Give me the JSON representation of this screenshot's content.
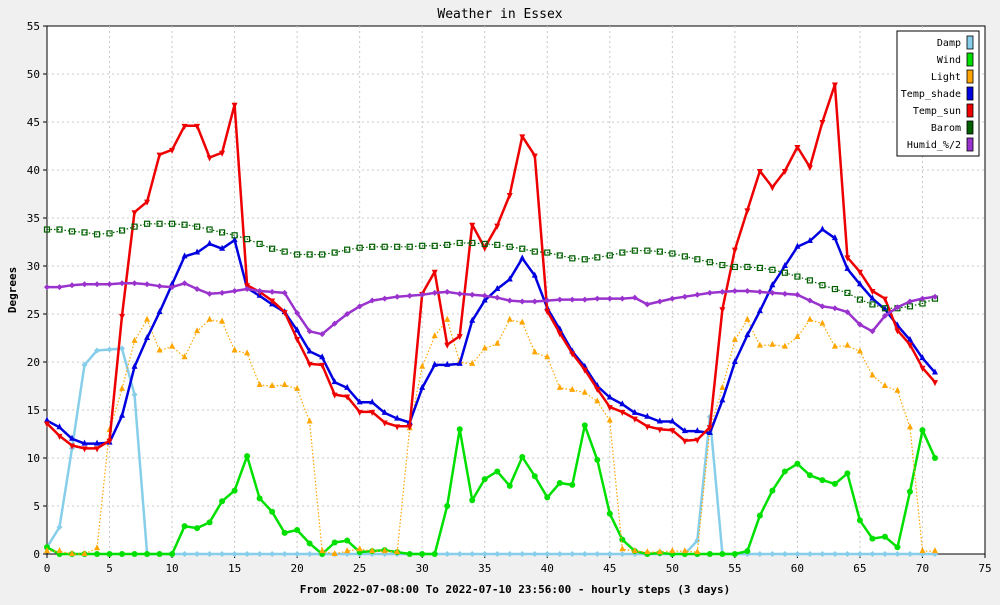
{
  "chart_data": {
    "type": "line",
    "title": "Weather in Essex",
    "xlabel": "From 2022-07-08:00 To 2022-07-10 23:56:00 - hourly steps (3 days)",
    "ylabel": "Degrees",
    "xlim": [
      0,
      75
    ],
    "ylim": [
      0,
      55
    ],
    "xticks": [
      0,
      5,
      10,
      15,
      20,
      25,
      30,
      35,
      40,
      45,
      50,
      55,
      60,
      65,
      70,
      75
    ],
    "yticks": [
      0,
      5,
      10,
      15,
      20,
      25,
      30,
      35,
      40,
      45,
      50,
      55
    ],
    "grid": true,
    "legend_position": "top-right",
    "series": [
      {
        "name": "Damp",
        "color": "#87ceeb",
        "marker": "diamond",
        "style": "solid",
        "values": [
          0.7,
          2.8,
          11,
          19.7,
          21.2,
          21.3,
          21.4,
          16.6,
          0,
          0,
          0,
          0,
          0,
          0,
          0,
          0,
          0,
          0,
          0,
          0,
          0,
          0,
          0,
          0,
          0,
          0,
          0,
          0,
          0,
          0,
          0,
          0,
          0,
          0,
          0,
          0,
          0,
          0,
          0,
          0,
          0,
          0,
          0,
          0,
          0,
          0,
          0,
          0,
          0,
          0,
          0,
          0,
          1.4,
          14.3,
          0,
          0,
          0,
          0,
          0,
          0,
          0,
          0,
          0,
          0,
          0,
          0,
          0,
          0,
          0,
          0,
          0,
          0
        ]
      },
      {
        "name": "Wind",
        "color": "#00e000",
        "marker": "circle",
        "style": "solid",
        "values": [
          0.7,
          0,
          0,
          0,
          0,
          0,
          0,
          0,
          0,
          0,
          0,
          2.9,
          2.7,
          3.3,
          5.5,
          6.6,
          10.2,
          5.8,
          4.4,
          2.2,
          2.5,
          1.1,
          0,
          1.2,
          1.4,
          0.2,
          0.3,
          0.4,
          0.2,
          0,
          0,
          0,
          5,
          13,
          5.6,
          7.8,
          8.6,
          7.1,
          10.1,
          8.1,
          5.9,
          7.4,
          7.2,
          13.4,
          9.8,
          4.2,
          1.5,
          0.3,
          0,
          0.1,
          0,
          0,
          0,
          0,
          0,
          0,
          0.3,
          4,
          6.6,
          8.6,
          9.4,
          8.2,
          7.7,
          7.3,
          8.4,
          3.5,
          1.6,
          1.8,
          0.7,
          6.5,
          12.9,
          10
        ]
      },
      {
        "name": "Light",
        "color": "#ffa500",
        "marker": "triangle",
        "style": "dotted",
        "values": [
          0.3,
          0.3,
          0,
          0,
          0.6,
          12.9,
          17.2,
          22.2,
          24.4,
          21.2,
          21.6,
          20.5,
          23.2,
          24.4,
          24.2,
          21.2,
          20.9,
          17.6,
          17.5,
          17.6,
          17.2,
          13.8,
          0.3,
          0,
          0.3,
          0.5,
          0.3,
          0.3,
          0.2,
          13.1,
          19.5,
          22.7,
          24.4,
          20,
          19.8,
          21.4,
          21.9,
          24.4,
          24.1,
          21,
          20.5,
          17.3,
          17.1,
          16.8,
          15.9,
          13.9,
          0.5,
          0.3,
          0.2,
          0.2,
          0.3,
          0.3,
          0.2,
          13,
          17.3,
          22.3,
          24.4,
          21.7,
          21.8,
          21.6,
          22.6,
          24.4,
          24,
          21.6,
          21.7,
          21.1,
          18.6,
          17.5,
          17,
          13.2,
          0.3,
          0.3
        ]
      },
      {
        "name": "Temp_shade",
        "color": "#0000e0",
        "marker": "triangle",
        "style": "solid",
        "values": [
          13.9,
          13.2,
          12,
          11.5,
          11.5,
          11.6,
          14.4,
          19.5,
          22.5,
          25.2,
          28.1,
          31,
          31.4,
          32.3,
          31.8,
          32.7,
          27.7,
          26.9,
          26,
          25.2,
          23.3,
          21.1,
          20.5,
          17.9,
          17.3,
          15.8,
          15.8,
          14.7,
          14.1,
          13.7,
          17.3,
          19.7,
          19.7,
          19.8,
          24.3,
          26.4,
          27.6,
          28.6,
          30.8,
          29,
          25.6,
          23.4,
          21.1,
          19.5,
          17.5,
          16.3,
          15.6,
          14.7,
          14.3,
          13.8,
          13.8,
          12.8,
          12.8,
          12.6,
          16,
          20,
          22.8,
          25.3,
          28,
          30,
          32,
          32.6,
          33.8,
          32.9,
          29.7,
          28.1,
          26.6,
          25.5,
          23.8,
          22.3,
          20.4,
          18.9
        ]
      },
      {
        "name": "Temp_sun",
        "color": "#ee0000",
        "marker": "triangle-down",
        "style": "solid",
        "values": [
          13.6,
          12.3,
          11.3,
          11,
          11,
          11.8,
          24.8,
          35.6,
          36.7,
          41.6,
          42.1,
          44.6,
          44.6,
          41.3,
          41.8,
          46.8,
          28,
          27.3,
          26.4,
          25.2,
          22.4,
          19.8,
          19.7,
          16.6,
          16.4,
          14.8,
          14.8,
          13.7,
          13.3,
          13.3,
          27.1,
          29.4,
          21.8,
          22.7,
          34.3,
          31.9,
          34.2,
          37.4,
          43.5,
          41.5,
          25.3,
          23,
          20.9,
          19.2,
          17.2,
          15.3,
          14.8,
          14.1,
          13.3,
          13,
          12.9,
          11.8,
          11.9,
          13.2,
          25.5,
          31.7,
          35.8,
          39.9,
          38.2,
          39.9,
          42.4,
          40.3,
          45,
          48.9,
          30.9,
          29.4,
          27.4,
          26.6,
          23.3,
          21.8,
          19.4,
          17.9
        ]
      },
      {
        "name": "Barom",
        "color": "#006000",
        "marker": "square",
        "style": "dotted",
        "values": [
          33.8,
          33.8,
          33.6,
          33.5,
          33.3,
          33.4,
          33.7,
          34.1,
          34.4,
          34.4,
          34.4,
          34.3,
          34.1,
          33.8,
          33.5,
          33.2,
          32.8,
          32.3,
          31.8,
          31.5,
          31.2,
          31.2,
          31.2,
          31.4,
          31.7,
          31.9,
          32,
          32,
          32,
          32,
          32.1,
          32.1,
          32.2,
          32.4,
          32.4,
          32.3,
          32.2,
          32,
          31.8,
          31.5,
          31.4,
          31.1,
          30.8,
          30.7,
          30.9,
          31.1,
          31.4,
          31.6,
          31.6,
          31.5,
          31.3,
          31,
          30.7,
          30.4,
          30.1,
          29.9,
          29.9,
          29.8,
          29.6,
          29.3,
          28.9,
          28.5,
          28,
          27.6,
          27.2,
          26.5,
          26,
          25.6,
          25.6,
          25.8,
          26.1,
          26.6
        ]
      },
      {
        "name": "Humid_%/2",
        "color": "#9a32cd",
        "marker": "diamond",
        "style": "solid",
        "values": [
          27.8,
          27.8,
          28,
          28.1,
          28.1,
          28.1,
          28.2,
          28.2,
          28.1,
          27.9,
          27.8,
          28.2,
          27.6,
          27.1,
          27.2,
          27.4,
          27.6,
          27.4,
          27.3,
          27.2,
          25.1,
          23.2,
          22.9,
          24,
          25,
          25.8,
          26.4,
          26.6,
          26.8,
          26.9,
          27,
          27.2,
          27.3,
          27.1,
          27,
          26.9,
          26.7,
          26.4,
          26.3,
          26.3,
          26.4,
          26.5,
          26.5,
          26.5,
          26.6,
          26.6,
          26.6,
          26.7,
          26,
          26.3,
          26.6,
          26.8,
          27,
          27.2,
          27.3,
          27.4,
          27.4,
          27.3,
          27.2,
          27.1,
          27,
          26.4,
          25.8,
          25.6,
          25.2,
          23.9,
          23.2,
          24.8,
          25.7,
          26.3,
          26.6,
          26.8
        ]
      }
    ]
  }
}
